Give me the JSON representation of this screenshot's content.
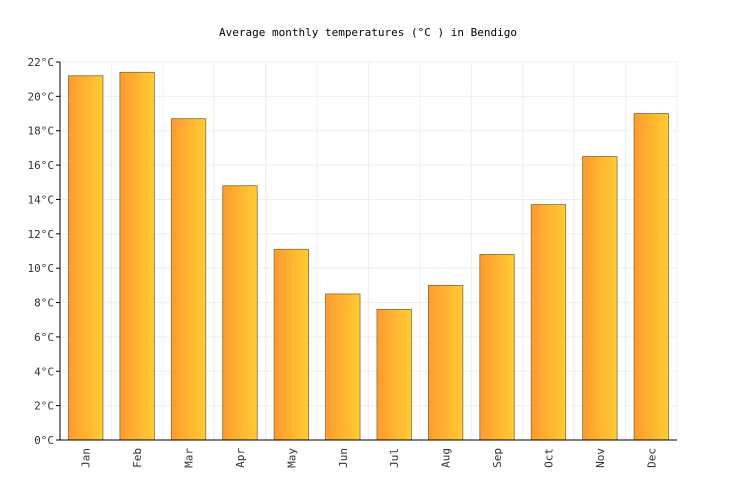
{
  "chart_data": {
    "type": "bar",
    "title": "Average monthly temperatures (°C ) in Bendigo",
    "categories": [
      "Jan",
      "Feb",
      "Mar",
      "Apr",
      "May",
      "Jun",
      "Jul",
      "Aug",
      "Sep",
      "Oct",
      "Nov",
      "Dec"
    ],
    "series": [
      {
        "values": [
          21.2,
          21.4,
          18.7,
          14.8,
          11.1,
          8.5,
          7.6,
          9.0,
          10.8,
          13.7,
          16.5,
          19.0
        ]
      }
    ],
    "ylim": [
      0,
      22
    ],
    "yticks": [
      "0°C",
      "2°C",
      "4°C",
      "6°C",
      "8°C",
      "10°C",
      "12°C",
      "14°C",
      "16°C",
      "18°C",
      "20°C",
      "22°C"
    ],
    "grid": true,
    "colors": {
      "bar_start": "#ff9a2e",
      "bar_end": "#ffcc33",
      "bar_stroke": "#8a6a3a"
    }
  }
}
